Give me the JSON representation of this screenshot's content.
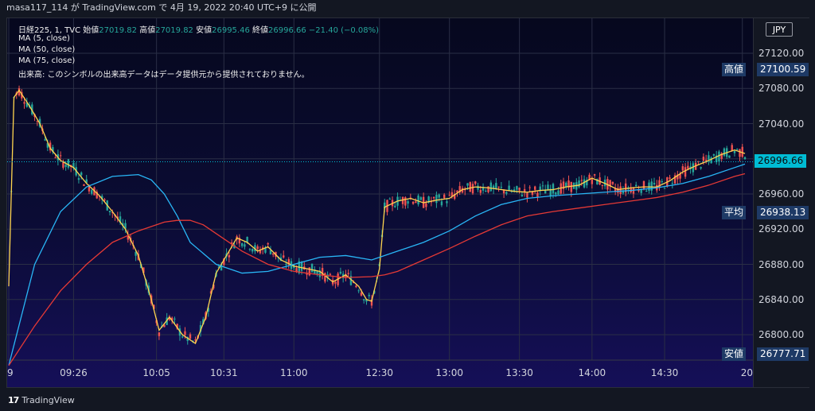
{
  "header": {
    "text": "masa117_114 が TradingView.com で 4月 19, 2022 20:40 UTC+9 に公開"
  },
  "legend": {
    "symbol": "日経225, 1, TVC",
    "open_label": "始値",
    "open_value": "27019.82",
    "high_label": "高値",
    "high_value": "27019.82",
    "low_label": "安値",
    "low_value": "26995.46",
    "close_label": "終値",
    "close_value": "26996.66",
    "change": "−21.40 (−0.08%)",
    "ma5": "MA (5, close)",
    "ma50": "MA (50, close)",
    "ma75": "MA (75, close)",
    "volume_note": "出来高: このシンボルの出来高データはデータ提供元から提供されておりません。"
  },
  "currency": "JPY",
  "price_tags": {
    "high_label": "高値",
    "high_value": "27100.59",
    "avg_label": "平均",
    "avg_value": "26938.13",
    "low_label": "安値",
    "low_value": "26777.71",
    "last_value": "26996.66"
  },
  "colors": {
    "up": "#26a69a",
    "down": "#ef5350",
    "ma5": "#ffd54f",
    "ma50": "#29b6f6",
    "ma75": "#e53935",
    "last_price": "#00bcd4"
  },
  "branding": {
    "name": "TradingView",
    "mark": "17"
  },
  "chart_data": {
    "type": "line",
    "title": "日経225, 1, TVC",
    "ylim": [
      26760,
      27150
    ],
    "y_ticks": [
      "27120.00",
      "27080.00",
      "27040.00",
      "27000.00",
      "26960.00",
      "26920.00",
      "26880.00",
      "26840.00",
      "26800.00"
    ],
    "y_tick_values": [
      27120,
      27080,
      27040,
      27000,
      26960,
      26920,
      26880,
      26840,
      26800
    ],
    "x_ticks": [
      "9",
      "09:26",
      "10:05",
      "10:31",
      "11:00",
      "12:30",
      "13:00",
      "13:30",
      "14:00",
      "14:30",
      "20"
    ],
    "x_tick_index": [
      0,
      25,
      57,
      83,
      110,
      143,
      170,
      197,
      225,
      253,
      283
    ],
    "grid": true,
    "series": [
      {
        "name": "MA (5, close)",
        "x_index": [
          0,
          2,
          4,
          8,
          12,
          16,
          20,
          25,
          30,
          35,
          40,
          45,
          50,
          55,
          58,
          62,
          67,
          72,
          76,
          80,
          84,
          88,
          92,
          96,
          100,
          105,
          110,
          115,
          120,
          125,
          130,
          135,
          138,
          140,
          143,
          145,
          150,
          155,
          160,
          165,
          170,
          175,
          180,
          185,
          190,
          195,
          200,
          205,
          210,
          215,
          220,
          225,
          230,
          235,
          240,
          245,
          250,
          255,
          260,
          265,
          270,
          275,
          280,
          284
        ],
        "values": [
          26855,
          27070,
          27078,
          27060,
          27040,
          27012,
          26998,
          26990,
          26972,
          26958,
          26940,
          26920,
          26890,
          26840,
          26805,
          26820,
          26800,
          26790,
          26820,
          26870,
          26890,
          26910,
          26905,
          26895,
          26900,
          26885,
          26878,
          26875,
          26872,
          26860,
          26868,
          26855,
          26840,
          26838,
          26875,
          26945,
          26952,
          26955,
          26950,
          26953,
          26955,
          26965,
          26968,
          26967,
          26965,
          26963,
          26962,
          26964,
          26965,
          26968,
          26970,
          26978,
          26972,
          26965,
          26967,
          26968,
          26968,
          26975,
          26985,
          26992,
          26998,
          27005,
          27010,
          27006
        ]
      },
      {
        "name": "MA (50, close)",
        "x_index": [
          0,
          10,
          20,
          30,
          40,
          50,
          55,
          60,
          65,
          70,
          80,
          90,
          100,
          110,
          120,
          130,
          140,
          150,
          160,
          170,
          180,
          190,
          200,
          210,
          220,
          230,
          240,
          250,
          260,
          270,
          280,
          284
        ],
        "values": [
          26765,
          26880,
          26940,
          26968,
          26980,
          26982,
          26976,
          26960,
          26935,
          26905,
          26880,
          26870,
          26872,
          26880,
          26888,
          26890,
          26885,
          26895,
          26905,
          26918,
          26935,
          26948,
          26955,
          26958,
          26960,
          26962,
          26964,
          26967,
          26972,
          26980,
          26990,
          26994
        ]
      },
      {
        "name": "MA (75, close)",
        "x_index": [
          0,
          10,
          20,
          30,
          40,
          50,
          60,
          65,
          70,
          75,
          80,
          90,
          100,
          110,
          120,
          130,
          140,
          145,
          150,
          160,
          170,
          180,
          190,
          200,
          210,
          220,
          230,
          240,
          250,
          260,
          270,
          280,
          284
        ],
        "values": [
          26765,
          26810,
          26850,
          26880,
          26905,
          26918,
          26928,
          26930,
          26930,
          26925,
          26915,
          26895,
          26880,
          26872,
          26868,
          26865,
          26866,
          26868,
          26872,
          26885,
          26898,
          26912,
          26925,
          26935,
          26940,
          26944,
          26948,
          26952,
          26956,
          26962,
          26970,
          26980,
          26983
        ]
      }
    ]
  }
}
